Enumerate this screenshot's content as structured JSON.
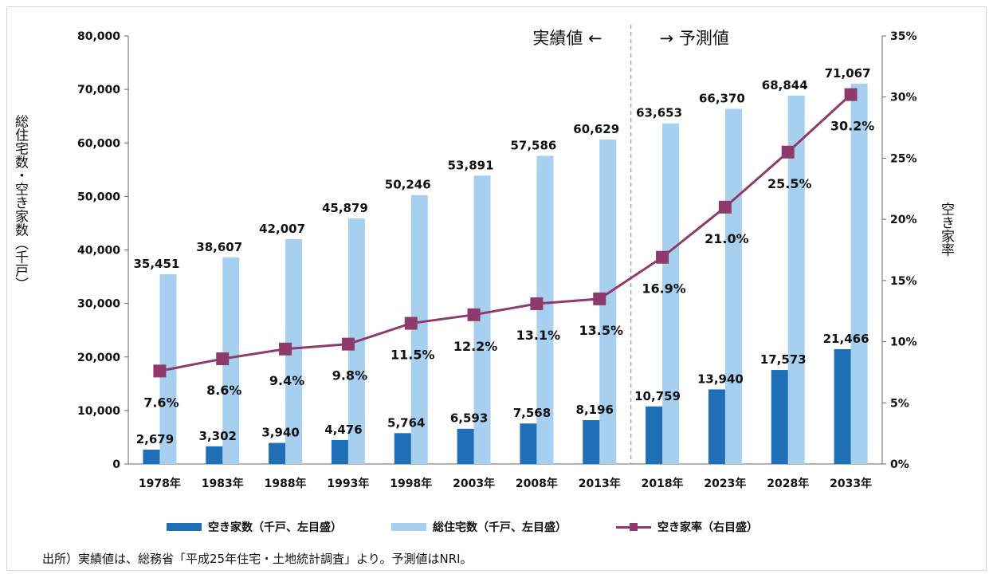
{
  "chart_data": {
    "type": "bar+line",
    "categories": [
      "1978年",
      "1983年",
      "1988年",
      "1993年",
      "1998年",
      "2003年",
      "2008年",
      "2013年",
      "2018年",
      "2023年",
      "2028年",
      "2033年"
    ],
    "series": [
      {
        "name": "空き家数（千戸、左目盛）",
        "axis": "left",
        "type": "bar",
        "color": "#1e6fb5",
        "values": [
          2679,
          3302,
          3940,
          4476,
          5764,
          6593,
          7568,
          8196,
          10759,
          13940,
          17573,
          21466
        ],
        "labels": [
          "2,679",
          "3,302",
          "3,940",
          "4,476",
          "5,764",
          "6,593",
          "7,568",
          "8,196",
          "10,759",
          "13,940",
          "17,573",
          "21,466"
        ]
      },
      {
        "name": "総住宅数（千戸、左目盛）",
        "axis": "left",
        "type": "bar",
        "color": "#a7cff0",
        "values": [
          35451,
          38607,
          42007,
          45879,
          50246,
          53891,
          57586,
          60629,
          63653,
          66370,
          68844,
          71067
        ],
        "labels": [
          "35,451",
          "38,607",
          "42,007",
          "45,879",
          "50,246",
          "53,891",
          "57,586",
          "60,629",
          "63,653",
          "66,370",
          "68,844",
          "71,067"
        ]
      },
      {
        "name": "空き家率（右目盛）",
        "axis": "right",
        "type": "line",
        "color": "#8e3a6b",
        "values": [
          7.6,
          8.6,
          9.4,
          9.8,
          11.5,
          12.2,
          13.1,
          13.5,
          16.9,
          21.0,
          25.5,
          30.2
        ],
        "labels": [
          "7.6%",
          "8.6%",
          "9.4%",
          "9.8%",
          "11.5%",
          "12.2%",
          "13.1%",
          "13.5%",
          "16.9%",
          "21.0%",
          "25.5%",
          "30.2%"
        ]
      }
    ],
    "y_left": {
      "title": "総住宅数・空き家数（千戸）",
      "min": 0,
      "max": 80000,
      "ticks": [
        "0",
        "10,000",
        "20,000",
        "30,000",
        "40,000",
        "50,000",
        "60,000",
        "70,000",
        "80,000"
      ]
    },
    "y_right": {
      "title": "空き家率",
      "min": 0,
      "max": 35,
      "ticks": [
        "0%",
        "5%",
        "10%",
        "15%",
        "20%",
        "25%",
        "30%",
        "35%"
      ]
    },
    "annotations": {
      "actual": "実績値 ←",
      "forecast": "→ 予測値"
    },
    "divider_after_category": "2013年"
  },
  "legend": {
    "vacant": "空き家数（千戸、左目盛）",
    "total": "総住宅数（千戸、左目盛）",
    "rate": "空き家率（右目盛）"
  },
  "source": "出所）実績値は、総務省「平成25年住宅・土地統計調査」より。予測値はNRI。"
}
